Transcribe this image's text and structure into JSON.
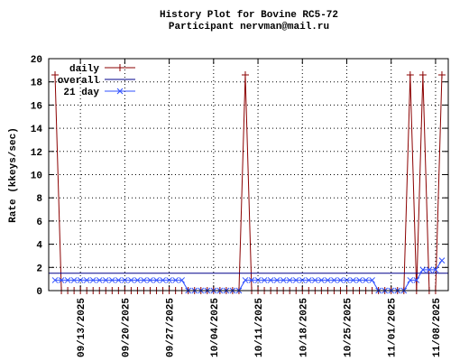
{
  "chart_data": {
    "type": "line",
    "title": "History Plot for Bovine RC5-72",
    "subtitle": "Participant nervman@mail.ru",
    "y_label": "Rate (kkeys/sec)",
    "xlim": [
      "09/08/2025",
      "11/10/2025"
    ],
    "xticks": [
      "09/13/2025",
      "09/20/2025",
      "09/27/2025",
      "10/04/2025",
      "10/11/2025",
      "10/18/2025",
      "10/25/2025",
      "11/01/2025",
      "11/08/2025"
    ],
    "ylim": [
      0,
      20
    ],
    "yticks": [
      0,
      2,
      4,
      6,
      8,
      10,
      12,
      14,
      16,
      18,
      20
    ],
    "grid": true,
    "legend": "top-left",
    "x": [
      "09/09/2025",
      "09/10/2025",
      "09/11/2025",
      "09/12/2025",
      "09/13/2025",
      "09/14/2025",
      "09/15/2025",
      "09/16/2025",
      "09/17/2025",
      "09/18/2025",
      "09/19/2025",
      "09/20/2025",
      "09/21/2025",
      "09/22/2025",
      "09/23/2025",
      "09/24/2025",
      "09/25/2025",
      "09/26/2025",
      "09/27/2025",
      "09/28/2025",
      "09/29/2025",
      "09/30/2025",
      "10/01/2025",
      "10/02/2025",
      "10/03/2025",
      "10/04/2025",
      "10/05/2025",
      "10/06/2025",
      "10/07/2025",
      "10/08/2025",
      "10/09/2025",
      "10/10/2025",
      "10/11/2025",
      "10/12/2025",
      "10/13/2025",
      "10/14/2025",
      "10/15/2025",
      "10/16/2025",
      "10/17/2025",
      "10/18/2025",
      "10/19/2025",
      "10/20/2025",
      "10/21/2025",
      "10/22/2025",
      "10/23/2025",
      "10/24/2025",
      "10/25/2025",
      "10/26/2025",
      "10/27/2025",
      "10/28/2025",
      "10/29/2025",
      "10/30/2025",
      "10/31/2025",
      "11/01/2025",
      "11/02/2025",
      "11/03/2025",
      "11/04/2025",
      "11/05/2025",
      "11/06/2025",
      "11/07/2025",
      "11/08/2025",
      "11/09/2025"
    ],
    "series": [
      {
        "name": "daily",
        "color": "#8b0000",
        "marker": "plus",
        "values": [
          18.6,
          0,
          0,
          0,
          0,
          0,
          0,
          0,
          0,
          0,
          0,
          0,
          0,
          0,
          0,
          0,
          0,
          0,
          0,
          0,
          0,
          0,
          0,
          0,
          0,
          0,
          0,
          0,
          0,
          0,
          18.6,
          0,
          0,
          0,
          0,
          0,
          0,
          0,
          0,
          0,
          0,
          0,
          0,
          0,
          0,
          0,
          0,
          0,
          0,
          0,
          0,
          0,
          0,
          0,
          0,
          0,
          18.6,
          0,
          18.6,
          0,
          0,
          18.6
        ]
      },
      {
        "name": "overall",
        "color": "#00008b",
        "marker": "none",
        "x": [
          "09/08/2025",
          "11/10/2025"
        ],
        "values": [
          1.5,
          1.5
        ]
      },
      {
        "name": "21 day",
        "color": "#3050ff",
        "marker": "cross",
        "values": [
          0.9,
          0.9,
          0.9,
          0.9,
          0.9,
          0.9,
          0.9,
          0.9,
          0.9,
          0.9,
          0.9,
          0.9,
          0.9,
          0.9,
          0.9,
          0.9,
          0.9,
          0.9,
          0.9,
          0.9,
          0.9,
          0,
          0,
          0,
          0,
          0,
          0,
          0,
          0,
          0,
          0.9,
          0.9,
          0.9,
          0.9,
          0.9,
          0.9,
          0.9,
          0.9,
          0.9,
          0.9,
          0.9,
          0.9,
          0.9,
          0.9,
          0.9,
          0.9,
          0.9,
          0.9,
          0.9,
          0.9,
          0.9,
          0,
          0,
          0,
          0,
          0,
          0.9,
          0.9,
          1.8,
          1.8,
          1.8,
          2.6
        ]
      }
    ]
  }
}
